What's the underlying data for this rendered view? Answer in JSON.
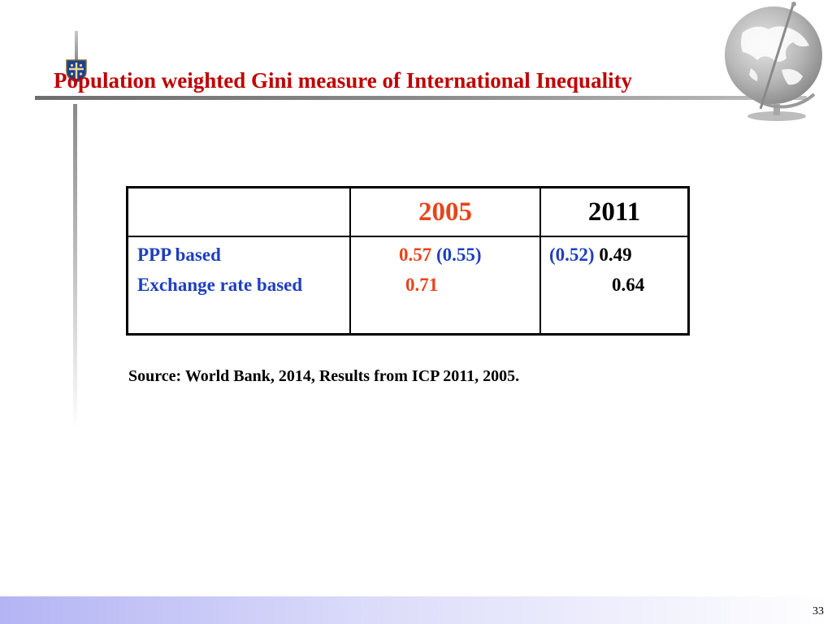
{
  "slide": {
    "title": "Population weighted Gini measure of International Inequality",
    "page_number": "33"
  },
  "table": {
    "headers": [
      "",
      "2005",
      "2011"
    ],
    "rows": [
      {
        "label": "PPP based",
        "v2005_main": "0.57",
        "v2005_paren": "(0.55)",
        "v2011_paren": "(0.52)",
        "v2011_main": "0.49"
      },
      {
        "label": "Exchange rate based",
        "v2005_main": "0.71",
        "v2011_main": "0.64"
      }
    ]
  },
  "source": "Source: World Bank, 2014, Results from ICP 2011, 2005.",
  "colors": {
    "title": "#c00000",
    "year_2005": "#e8441c",
    "row_label": "#1f3fbf",
    "paren_value": "#1f3fbf"
  },
  "icons": [
    "university-shield-logo",
    "globe-icon"
  ]
}
